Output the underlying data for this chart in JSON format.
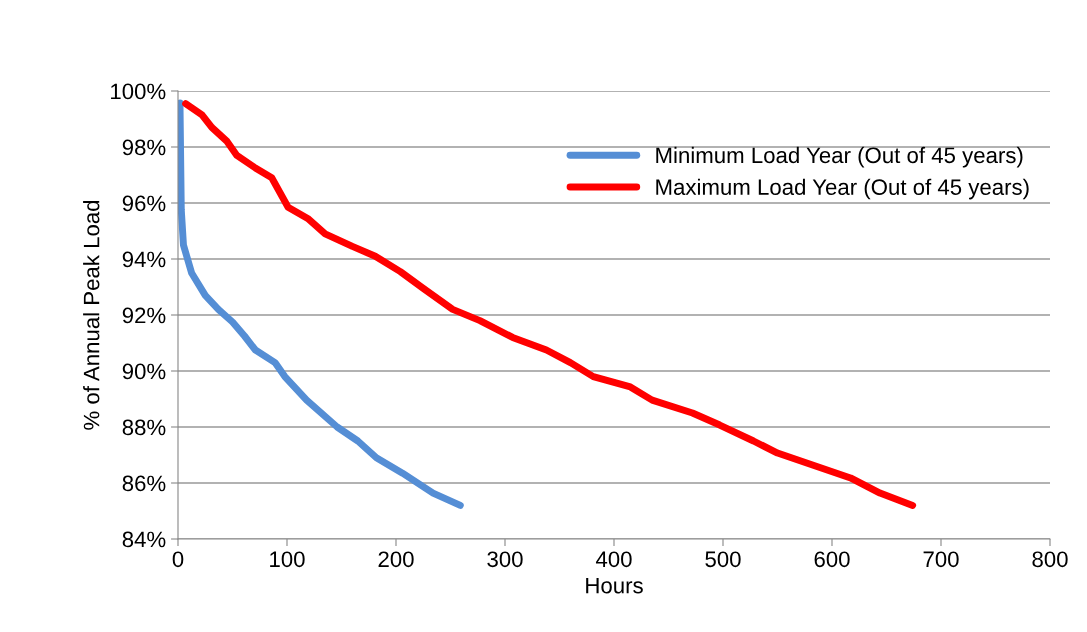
{
  "chart_data": {
    "type": "line",
    "xlabel": "Hours",
    "ylabel": "% of Annual Peak Load",
    "xlim": [
      0,
      800
    ],
    "xticks": [
      0,
      100,
      200,
      300,
      400,
      500,
      600,
      700,
      800
    ],
    "ylim": [
      84,
      100
    ],
    "yticks": [
      {
        "value": 84,
        "label": "84%"
      },
      {
        "value": 86,
        "label": "86%"
      },
      {
        "value": 88,
        "label": "88%"
      },
      {
        "value": 90,
        "label": "90%"
      },
      {
        "value": 92,
        "label": "92%"
      },
      {
        "value": 94,
        "label": "94%"
      },
      {
        "value": 96,
        "label": "96%"
      },
      {
        "value": 98,
        "label": "98%"
      },
      {
        "value": 100,
        "label": "100%"
      }
    ],
    "grid": "y",
    "legend": "top right",
    "marker": "none",
    "line_style": "solid",
    "series": [
      {
        "name": "Minimum Load Year (Out of 45 years)",
        "color": "#558ed5",
        "x": [
          1.8,
          3,
          5,
          12.5,
          25,
          37,
          50,
          61,
          71,
          89,
          98,
          118,
          146,
          165,
          182,
          206,
          234,
          259
        ],
        "values": [
          99.57,
          95.75,
          94.5,
          93.5,
          92.7,
          92.2,
          91.75,
          91.25,
          90.75,
          90.3,
          89.8,
          88.96,
          88.0,
          87.5,
          86.9,
          86.35,
          85.64,
          85.2
        ]
      },
      {
        "name": "Maximum Load Year (Out of 45 years)",
        "color": "#ff0000",
        "x": [
          7,
          22,
          31,
          45,
          54,
          71,
          86,
          101,
          119,
          135,
          160,
          181,
          204,
          225,
          252,
          277,
          307,
          338,
          360,
          381,
          415,
          435,
          472,
          497,
          528,
          550,
          617,
          644,
          674
        ],
        "values": [
          99.55,
          99.15,
          98.7,
          98.2,
          97.7,
          97.25,
          96.9,
          95.85,
          95.45,
          94.9,
          94.45,
          94.1,
          93.55,
          92.95,
          92.2,
          91.8,
          91.2,
          90.75,
          90.3,
          89.8,
          89.43,
          88.96,
          88.5,
          88.07,
          87.5,
          87.07,
          86.18,
          85.64,
          85.2
        ]
      }
    ]
  }
}
